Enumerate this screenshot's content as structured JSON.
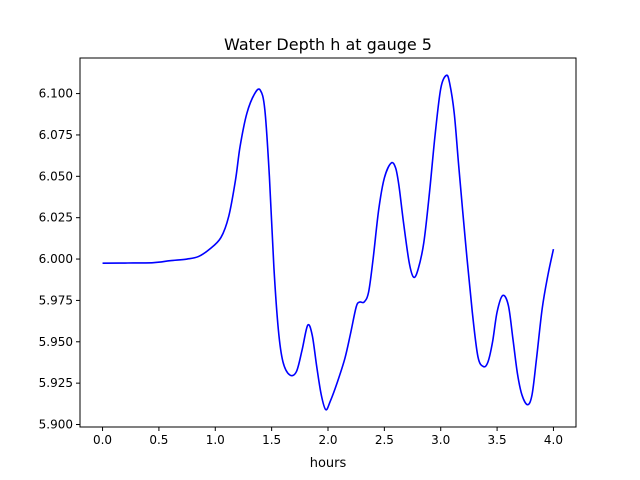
{
  "chart_data": {
    "type": "line",
    "title": "Water Depth h at gauge 5",
    "xlabel": "hours",
    "ylabel": "",
    "xlim": [
      -0.2,
      4.2
    ],
    "ylim": [
      5.8985,
      6.1215
    ],
    "xticks": [
      0.0,
      0.5,
      1.0,
      1.5,
      2.0,
      2.5,
      3.0,
      3.5,
      4.0
    ],
    "xtick_labels": [
      "0.0",
      "0.5",
      "1.0",
      "1.5",
      "2.0",
      "2.5",
      "3.0",
      "3.5",
      "4.0"
    ],
    "yticks": [
      5.9,
      5.925,
      5.95,
      5.975,
      6.0,
      6.025,
      6.05,
      6.075,
      6.1
    ],
    "ytick_labels": [
      "5.900",
      "5.925",
      "5.950",
      "5.975",
      "6.000",
      "6.025",
      "6.050",
      "6.075",
      "6.100"
    ],
    "grid": false,
    "series": [
      {
        "color": "#0000ff",
        "x": [
          0.0,
          0.2,
          0.45,
          0.6,
          0.75,
          0.85,
          0.95,
          1.05,
          1.12,
          1.18,
          1.22,
          1.28,
          1.35,
          1.4,
          1.44,
          1.48,
          1.52,
          1.56,
          1.6,
          1.66,
          1.72,
          1.77,
          1.82,
          1.86,
          1.9,
          1.94,
          1.98,
          2.02,
          2.08,
          2.15,
          2.2,
          2.25,
          2.28,
          2.32,
          2.36,
          2.4,
          2.45,
          2.5,
          2.56,
          2.6,
          2.63,
          2.67,
          2.72,
          2.76,
          2.8,
          2.85,
          2.9,
          2.95,
          3.0,
          3.05,
          3.08,
          3.12,
          3.16,
          3.22,
          3.28,
          3.33,
          3.38,
          3.42,
          3.46,
          3.5,
          3.55,
          3.6,
          3.64,
          3.68,
          3.72,
          3.77,
          3.81,
          3.85,
          3.9,
          3.95,
          4.0
        ],
        "y": [
          5.9975,
          5.9976,
          5.9978,
          5.999,
          6.0,
          6.0015,
          6.006,
          6.013,
          6.026,
          6.048,
          6.068,
          6.088,
          6.1,
          6.102,
          6.09,
          6.05,
          5.995,
          5.957,
          5.938,
          5.93,
          5.932,
          5.945,
          5.96,
          5.954,
          5.935,
          5.918,
          5.909,
          5.914,
          5.925,
          5.94,
          5.955,
          5.971,
          5.974,
          5.974,
          5.98,
          6.0,
          6.03,
          6.049,
          6.058,
          6.055,
          6.044,
          6.022,
          5.998,
          5.989,
          5.994,
          6.01,
          6.04,
          6.075,
          6.103,
          6.111,
          6.106,
          6.088,
          6.056,
          6.01,
          5.968,
          5.941,
          5.935,
          5.938,
          5.95,
          5.968,
          5.978,
          5.972,
          5.952,
          5.931,
          5.918,
          5.912,
          5.918,
          5.94,
          5.97,
          5.99,
          6.006
        ]
      }
    ]
  }
}
